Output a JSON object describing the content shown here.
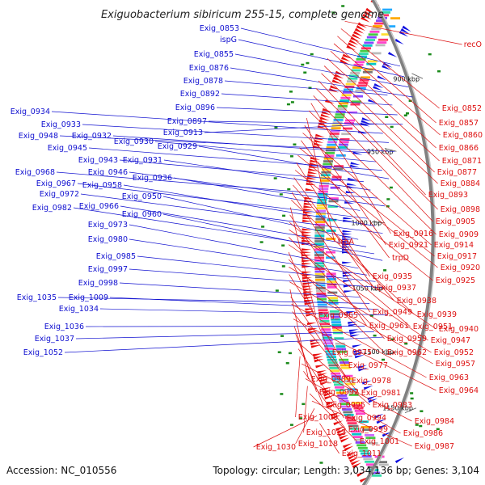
{
  "title": "Exiguobacterium sibiricum 255-15, complete genome",
  "accession": "Accession: NC_010556",
  "topology": "Topology: circular; Length: 3,034,136 bp; Genes: 3,104",
  "colors": {
    "forward_gene": "#e81010",
    "reverse_gene": "#1010e0",
    "label_blue": "#1010d0",
    "label_red": "#dd1010",
    "backbone": "#808080",
    "rna_marker": "#1a8a1a"
  },
  "ticks": [
    {
      "label": "900 kbp",
      "kbp": 900
    },
    {
      "label": "950 kbp",
      "kbp": 950
    },
    {
      "label": "1000 kbp",
      "kbp": 1000
    },
    {
      "label": "1050 kbp",
      "kbp": 1050
    },
    {
      "label": "1100 kbp",
      "kbp": 1100
    },
    {
      "label": "1150 kbp",
      "kbp": 1150
    }
  ],
  "left_labels": [
    "Exig_0853",
    "ispG",
    "Exig_0855",
    "Exig_0876",
    "Exig_0878",
    "Exig_0892",
    "Exig_0896",
    "Exig_0897",
    "Exig_0913",
    "Exig_0934",
    "Exig_0933",
    "Exig_0948",
    "Exig_0932",
    "Exig_0930",
    "Exig_0945",
    "Exig_0929",
    "Exig_0943",
    "Exig_0931",
    "Exig_0968",
    "Exig_0946",
    "Exig_0936",
    "Exig_0967",
    "Exig_0958",
    "Exig_0972",
    "Exig_0950",
    "Exig_0966",
    "Exig_0982",
    "Exig_0960",
    "Exig_0973",
    "Exig_0980",
    "Exig_0985",
    "Exig_0997",
    "Exig_0998",
    "Exig_1035",
    "Exig_1009",
    "Exig_1034",
    "Exig_1036",
    "Exig_1037",
    "Exig_1052"
  ],
  "right_labels": [
    "recO",
    "Exig_0852",
    "Exig_0857",
    "Exig_0860",
    "Exig_0866",
    "Exig_0871",
    "Exig_0877",
    "Exig_0884",
    "Exig_0893",
    "Exig_0898",
    "Exig_0905",
    "Exig_0916",
    "Exig_0909",
    "trpA",
    "Exig_0921",
    "Exig_0914",
    "trpD",
    "Exig_0917",
    "Exig_0920",
    "Exig_0935",
    "Exig_0925",
    "Exig_0937",
    "Exig_0938",
    "Exig_0949",
    "Exig_0939",
    "Exig_0965",
    "Exig_0961",
    "Exig_0951",
    "Exig_0940",
    "Exig_0959",
    "Exig_0947",
    "Exig_0975",
    "Exig_0962",
    "Exig_0952",
    "Exig_0977",
    "Exig_0957",
    "Exig_0989",
    "Exig_0978",
    "Exig_0963",
    "Exig_0981",
    "Exig_0964",
    "Exig_0992",
    "Exig_0995",
    "Exig_0983",
    "Exig_0994",
    "Exig_1008",
    "Exig_0984",
    "Exig_0999",
    "Exig_0986",
    "Exig_1013",
    "Exig_1001",
    "Exig_0987",
    "Exig_1018",
    "Exig_1030",
    "Exig_1011"
  ]
}
